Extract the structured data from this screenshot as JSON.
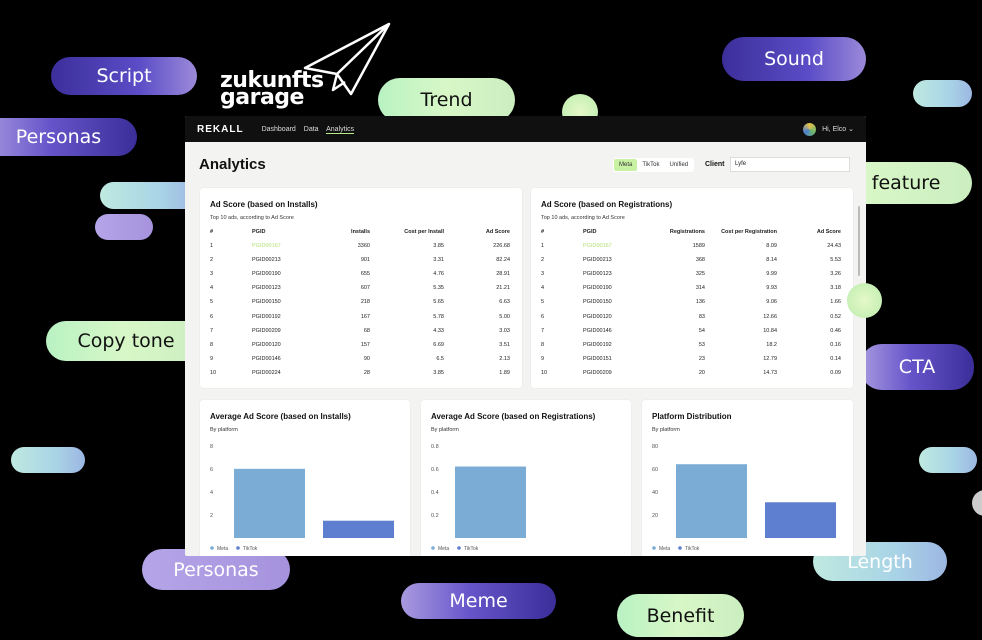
{
  "pills": [
    "Script",
    "Personas",
    "Copy tone",
    "Trend",
    "Sound",
    "Product feature",
    "CTA",
    "Length",
    "Personas",
    "Meme",
    "Benefit"
  ],
  "logo": {
    "line1": "zukunfts",
    "line2": "garage"
  },
  "app": {
    "brand": "REKALL",
    "nav": [
      "Dashboard",
      "Data",
      "Analytics"
    ],
    "user": "Hi, Elco ⌄",
    "page_title": "Analytics",
    "platform_tabs": [
      "Meta",
      "TikTok",
      "Unified"
    ],
    "client_label": "Client",
    "client_value": "Lyfe"
  },
  "installs_table": {
    "title": "Ad Score (based on Installs)",
    "subtitle": "Top 10 ads, according to Ad Score",
    "headers": [
      "#",
      "PGID",
      "Installs",
      "Cost per Install",
      "Ad Score"
    ],
    "rows": [
      [
        "1",
        "PGID00167",
        "3360",
        "3.85",
        "226.68"
      ],
      [
        "2",
        "PGID00213",
        "901",
        "3.31",
        "82.24"
      ],
      [
        "3",
        "PGID00190",
        "655",
        "4.76",
        "28.91"
      ],
      [
        "4",
        "PGID00123",
        "607",
        "5.35",
        "21.21"
      ],
      [
        "5",
        "PGID00150",
        "218",
        "5.65",
        "6.63"
      ],
      [
        "6",
        "PGID00192",
        "167",
        "5.78",
        "5.00"
      ],
      [
        "7",
        "PGID00209",
        "68",
        "4.33",
        "3.03"
      ],
      [
        "8",
        "PGID00120",
        "157",
        "6.69",
        "3.51"
      ],
      [
        "9",
        "PGID00146",
        "90",
        "6.5",
        "2.13"
      ],
      [
        "10",
        "PGID00224",
        "28",
        "3.85",
        "1.89"
      ]
    ]
  },
  "registrations_table": {
    "title": "Ad Score (based on Registrations)",
    "subtitle": "Top 10 ads, according to Ad Score",
    "headers": [
      "#",
      "PGID",
      "Registrations",
      "Cost per Registration",
      "Ad Score"
    ],
    "rows": [
      [
        "1",
        "PGID00167",
        "1589",
        "8.09",
        "24.43"
      ],
      [
        "2",
        "PGID00213",
        "368",
        "8.14",
        "5.53"
      ],
      [
        "3",
        "PGID00123",
        "325",
        "9.99",
        "3.26"
      ],
      [
        "4",
        "PGID00190",
        "314",
        "9.93",
        "3.18"
      ],
      [
        "5",
        "PGID00150",
        "136",
        "9.06",
        "1.66"
      ],
      [
        "6",
        "PGID00120",
        "83",
        "12.66",
        "0.52"
      ],
      [
        "7",
        "PGID00146",
        "54",
        "10.84",
        "0.46"
      ],
      [
        "8",
        "PGID00192",
        "53",
        "18.2",
        "0.16"
      ],
      [
        "9",
        "PGID00151",
        "23",
        "12.79",
        "0.14"
      ],
      [
        "10",
        "PGID00209",
        "20",
        "14.73",
        "0.09"
      ]
    ]
  },
  "chart_data": [
    {
      "type": "bar",
      "title": "Average Ad Score (based on Installs)",
      "subtitle": "By platform",
      "categories": [
        "Meta",
        "TikTok"
      ],
      "values": [
        6.0,
        1.5
      ],
      "yticks": [
        2,
        4,
        6,
        8
      ],
      "ylim": [
        0,
        8.5
      ],
      "legend": [
        "Meta",
        "TikTok"
      ],
      "colors": [
        "#7bacd6",
        "#5e7fcf"
      ]
    },
    {
      "type": "bar",
      "title": "Average Ad Score (based on Registrations)",
      "subtitle": "By platform",
      "categories": [
        "Meta",
        "TikTok"
      ],
      "values": [
        0.62,
        0
      ],
      "yticks": [
        0.2,
        0.4,
        0.6,
        0.8
      ],
      "ylim": [
        0,
        0.85
      ],
      "legend": [
        "Meta",
        "TikTok"
      ],
      "colors": [
        "#7bacd6",
        "#5e7fcf"
      ]
    },
    {
      "type": "bar",
      "title": "Platform Distribution",
      "subtitle": "By platform",
      "categories": [
        "Meta",
        "TikTok"
      ],
      "values": [
        64,
        31
      ],
      "yticks": [
        20,
        40,
        60,
        80
      ],
      "ylim": [
        0,
        85
      ],
      "legend": [
        "Meta",
        "TikTok"
      ],
      "colors": [
        "#7bacd6",
        "#5e7fcf"
      ]
    }
  ]
}
